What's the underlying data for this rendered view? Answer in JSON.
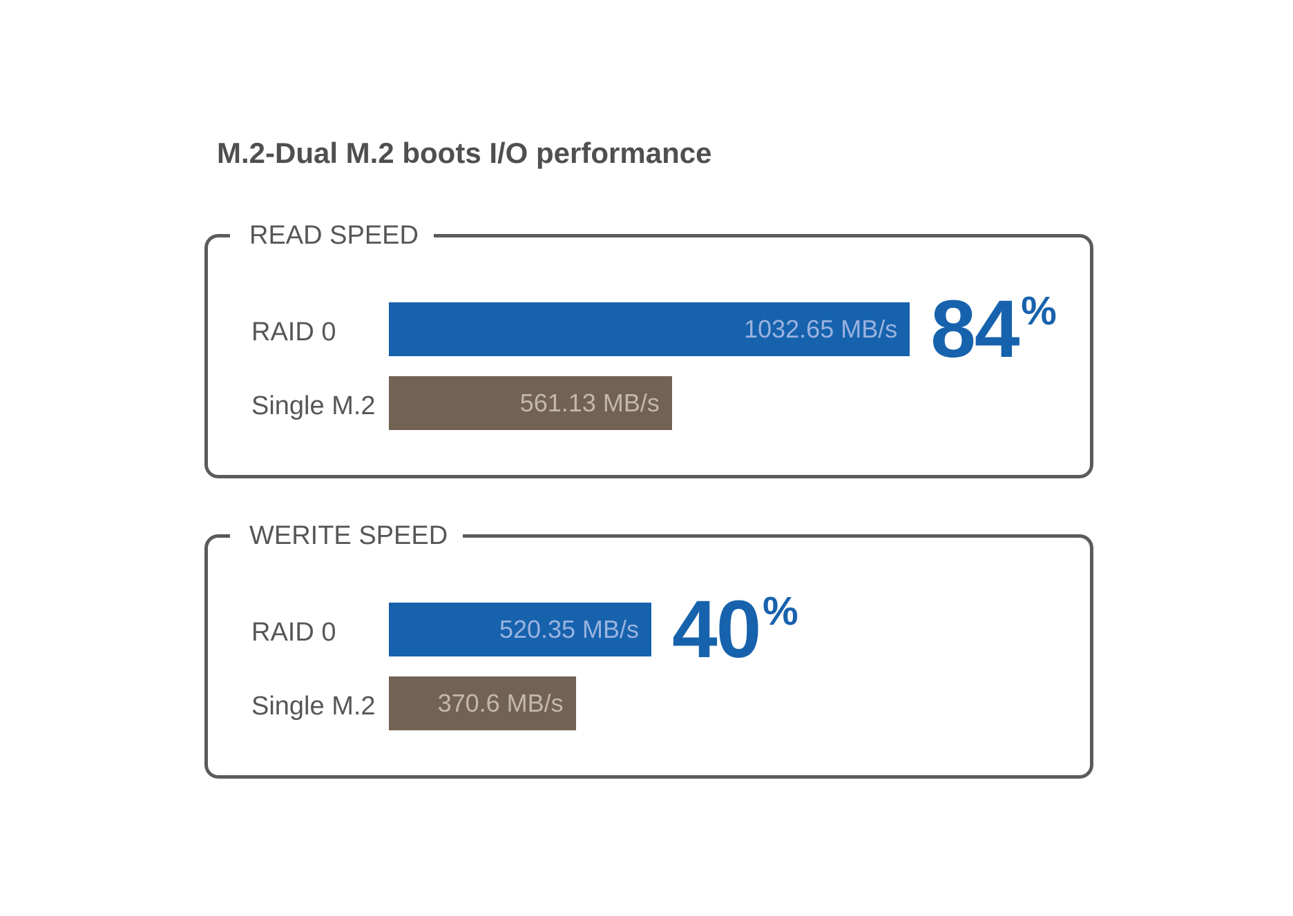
{
  "chart_data": {
    "type": "bar",
    "title": "M.2-Dual M.2 boots I/O performance",
    "unit": "MB/s",
    "panels": [
      {
        "name": "READ SPEED",
        "categories": [
          "RAID 0",
          "Single M.2"
        ],
        "values": [
          1032.65,
          561.13
        ],
        "value_labels": [
          "1032.65 MB/s",
          "561.13 MB/s"
        ],
        "colors": [
          "#1762ad",
          "#716253"
        ],
        "gain_number": "84",
        "gain_unit": "%"
      },
      {
        "name": "WERITE SPEED",
        "categories": [
          "RAID 0",
          "Single M.2"
        ],
        "values": [
          520.35,
          370.6
        ],
        "value_labels": [
          "520.35 MB/s",
          "370.6 MB/s"
        ],
        "colors": [
          "#1762ad",
          "#716253"
        ],
        "gain_number": "40",
        "gain_unit": "%"
      }
    ],
    "orientation": "horizontal",
    "grid": false,
    "legend": "none"
  },
  "colors": {
    "raid_bar": "#1762ad",
    "single_bar": "#716253",
    "frame": "#5b5b5d",
    "text": "#565658"
  }
}
